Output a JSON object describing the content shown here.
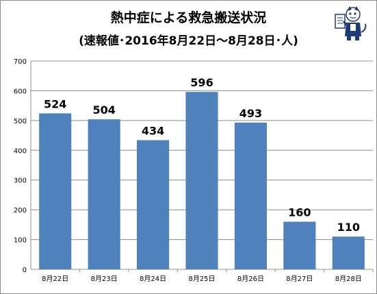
{
  "chart_data": {
    "type": "bar",
    "title": "熱中症による救急搬送状況",
    "subtitle": "(速報値･2016年8月22日～8月28日･人)",
    "categories": [
      "8月22日",
      "8月23日",
      "8月24日",
      "8月25日",
      "8月26日",
      "8月27日",
      "8月28日"
    ],
    "values": [
      524,
      504,
      434,
      596,
      493,
      160,
      110
    ],
    "ylim": [
      0,
      700
    ],
    "yticks": [
      0,
      100,
      200,
      300,
      400,
      500,
      600,
      700
    ],
    "grid": true,
    "bar_color": "#4f81bd",
    "grid_color": "#8c8c8c"
  },
  "mascot_icon": "newspaper-reading-mascot-icon"
}
